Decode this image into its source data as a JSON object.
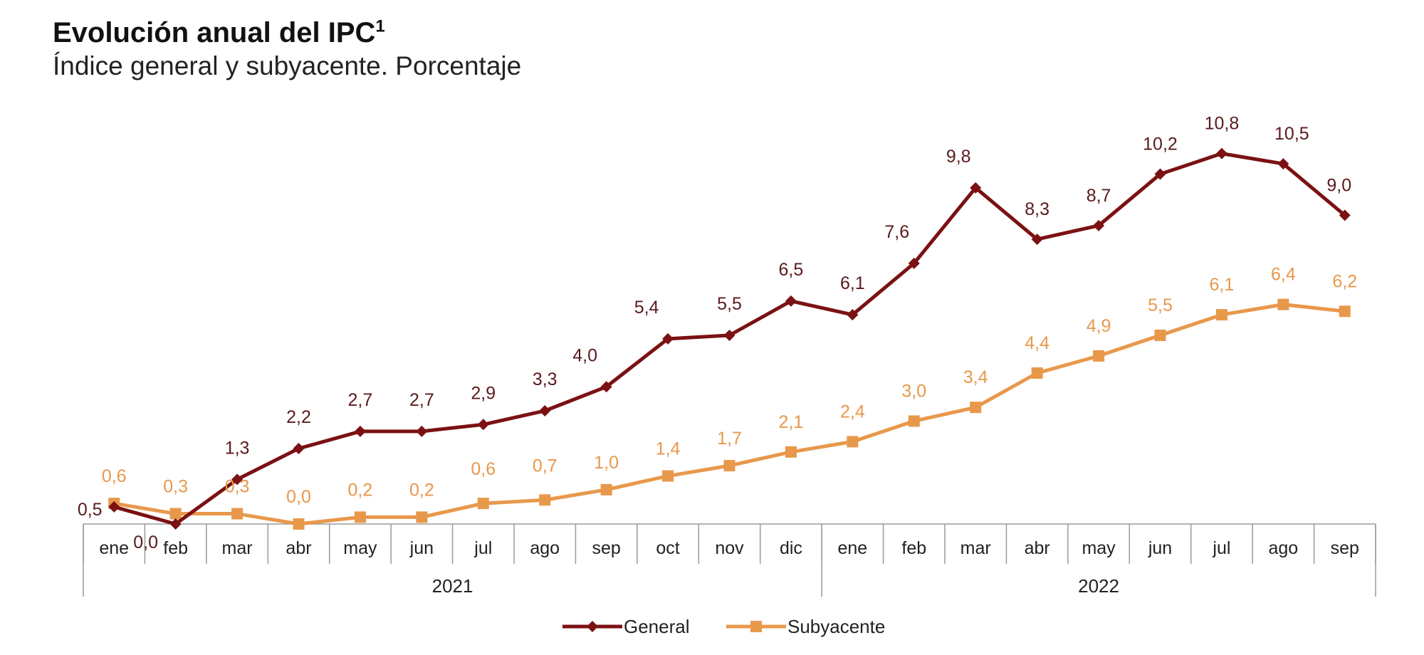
{
  "title": "Evolución anual del IPC",
  "title_sup": "1",
  "subtitle": "Índice general y subyacente. Porcentaje",
  "chart_data": {
    "type": "line",
    "categories": [
      "ene",
      "feb",
      "mar",
      "abr",
      "may",
      "jun",
      "jul",
      "ago",
      "sep",
      "oct",
      "nov",
      "dic",
      "ene",
      "feb",
      "mar",
      "abr",
      "may",
      "jun",
      "jul",
      "ago",
      "sep"
    ],
    "groups": [
      {
        "label": "2021",
        "count": 12
      },
      {
        "label": "2022",
        "count": 9
      }
    ],
    "series": [
      {
        "name": "General",
        "color": "#7b1113",
        "marker": "diamond",
        "values": [
          0.5,
          0.0,
          1.3,
          2.2,
          2.7,
          2.7,
          2.9,
          3.3,
          4.0,
          5.4,
          5.5,
          6.5,
          6.1,
          7.6,
          9.8,
          8.3,
          8.7,
          10.2,
          10.8,
          10.5,
          9.0
        ],
        "labels": [
          "0,5",
          "0,0",
          "1,3",
          "2,2",
          "2,7",
          "2,7",
          "2,9",
          "3,3",
          "4,0",
          "5,4",
          "5,5",
          "6,5",
          "6,1",
          "7,6",
          "9,8",
          "8,3",
          "8,7",
          "10,2",
          "10,8",
          "10,5",
          "9,0"
        ]
      },
      {
        "name": "Subyacente",
        "color": "#e8984b",
        "marker": "square",
        "values": [
          0.6,
          0.3,
          0.3,
          0.0,
          0.2,
          0.2,
          0.6,
          0.7,
          1.0,
          1.4,
          1.7,
          2.1,
          2.4,
          3.0,
          3.4,
          4.4,
          4.9,
          5.5,
          6.1,
          6.4,
          6.2
        ],
        "labels": [
          "0,6",
          "0,3",
          "0,3",
          "0,0",
          "0,2",
          "0,2",
          "0,6",
          "0,7",
          "1,0",
          "1,4",
          "1,7",
          "2,1",
          "2,4",
          "3,0",
          "3,4",
          "4,4",
          "4,9",
          "5,5",
          "6,1",
          "6,4",
          "6,2"
        ]
      }
    ],
    "ylim": [
      0,
      11
    ],
    "grid": false,
    "legend": "bottom-center"
  }
}
